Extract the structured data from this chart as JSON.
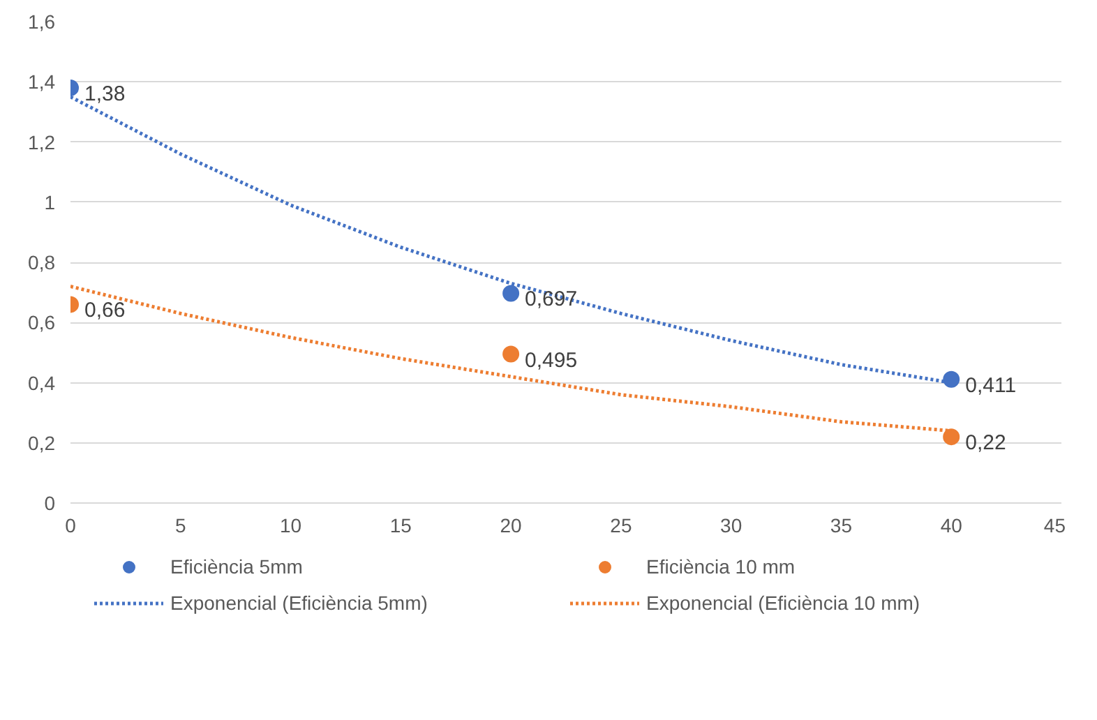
{
  "chart_data": {
    "type": "scatter",
    "xlim": [
      0,
      45
    ],
    "ylim": [
      0,
      1.6
    ],
    "xticks": [
      0,
      5,
      10,
      15,
      20,
      25,
      30,
      35,
      40,
      45
    ],
    "yticks": [
      0,
      {
        "value": 0.2,
        "label": "0,2"
      },
      {
        "value": 0.4,
        "label": "0,4"
      },
      {
        "value": 0.6,
        "label": "0,6"
      },
      {
        "value": 0.8,
        "label": "0,8"
      },
      1,
      {
        "value": 1.2,
        "label": "1,2"
      },
      {
        "value": 1.4,
        "label": "1,4"
      },
      {
        "value": 1.6,
        "label": "1,6"
      }
    ],
    "grid": "y",
    "legend": "bottom",
    "series": [
      {
        "name": "Eficiència 5mm",
        "marker": "circle",
        "color": "#4472c4",
        "x": [
          0,
          20,
          40
        ],
        "values": [
          1.38,
          0.697,
          0.411
        ],
        "value_labels": [
          "1,38",
          "0,697",
          "0,411"
        ]
      },
      {
        "name": "Eficiència 10 mm",
        "marker": "circle",
        "color": "#ed7d31",
        "x": [
          0,
          20,
          40
        ],
        "values": [
          0.66,
          0.495,
          0.22
        ],
        "value_labels": [
          "0,66",
          "0,495",
          "0,22"
        ]
      },
      {
        "name": "Exponencial (Eficiència 5mm)",
        "type": "line",
        "line_style": "dotted",
        "color": "#4472c4",
        "x": [
          0,
          5,
          10,
          15,
          20,
          25,
          30,
          35,
          40
        ],
        "values": [
          1.35,
          1.16,
          0.99,
          0.85,
          0.73,
          0.63,
          0.54,
          0.46,
          0.4
        ]
      },
      {
        "name": "Exponencial (Eficiència 10 mm)",
        "type": "line",
        "line_style": "dotted",
        "color": "#ed7d31",
        "x": [
          0,
          5,
          10,
          15,
          20,
          25,
          30,
          35,
          40
        ],
        "values": [
          0.72,
          0.63,
          0.55,
          0.48,
          0.42,
          0.36,
          0.32,
          0.27,
          0.24
        ]
      }
    ]
  }
}
